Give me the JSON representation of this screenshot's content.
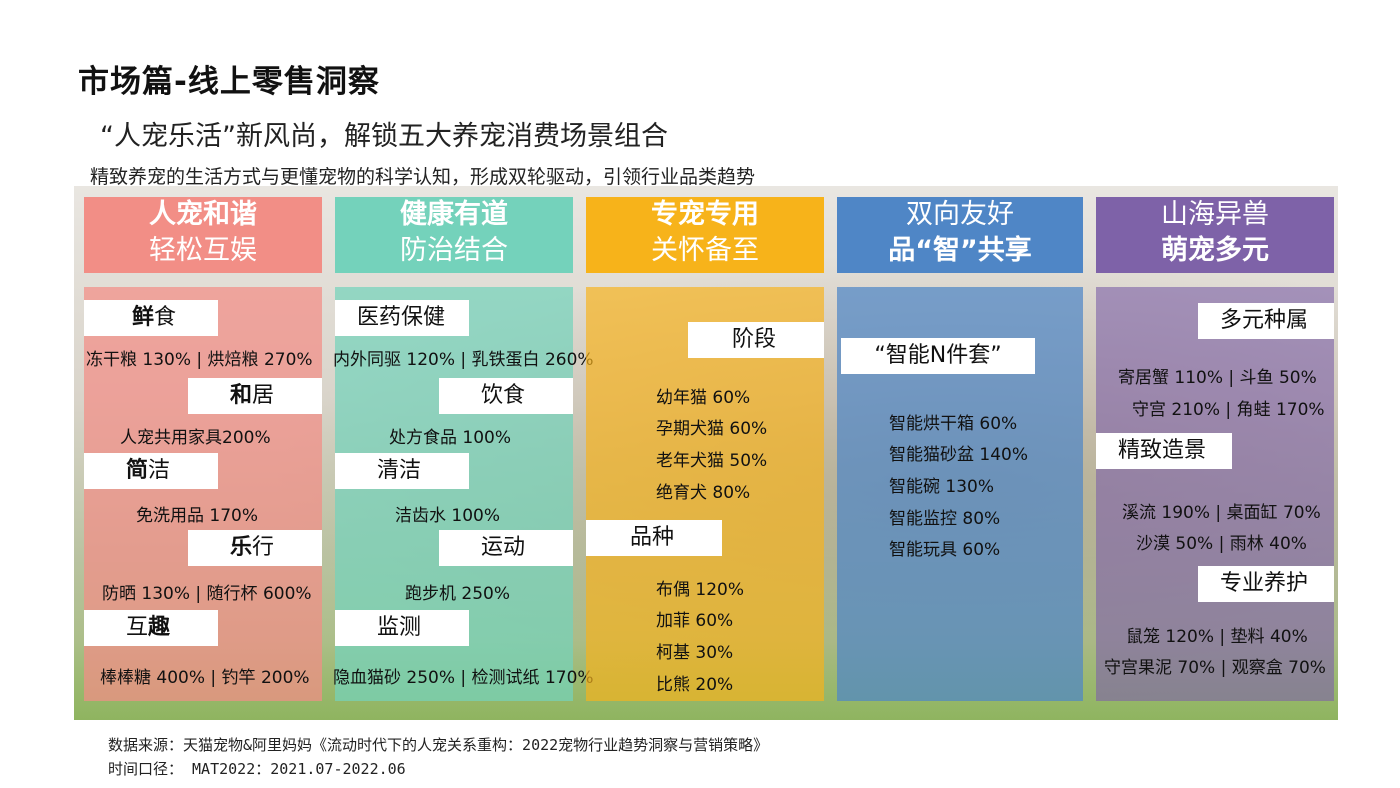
{
  "title": "市场篇-线上零售洞察",
  "subtitle": "“人宠乐活”新风尚，解锁五大养宠消费场景组合",
  "description": "精致养宠的生活方式与更懂宠物的科学认知，形成双轮驱动，引领行业品类趋势",
  "colors": {
    "c1": "#f28e86",
    "c2": "#74d2bb",
    "c3": "#f7b31a",
    "c4": "#4f86c6",
    "c5": "#7e62a8"
  },
  "columns": [
    {
      "header": [
        "人宠和谐",
        "轻松互娱"
      ],
      "items": [
        {
          "label_bold": "鲜",
          "label_rest": "食",
          "values": "冻干粮 130%  |  烘焙粮 270%"
        },
        {
          "label_bold": "和",
          "label_rest": "居",
          "values": "人宠共用家具200%"
        },
        {
          "label_bold": "简",
          "label_rest": "洁",
          "values": "免洗用品 170%"
        },
        {
          "label_bold": "乐",
          "label_rest": "行",
          "values": "防晒 130% | 随行杯 600%"
        },
        {
          "label_bold": "互",
          "label_mid": "趣",
          "label_rest": "",
          "values": "棒棒糖 400% | 钓竿 200%"
        }
      ]
    },
    {
      "header": [
        "健康有道",
        "防治结合"
      ],
      "items": [
        {
          "label": "医药保健",
          "values": "内外同驱 120% | 乳铁蛋白 260%"
        },
        {
          "label": "饮食",
          "values": "处方食品 100%"
        },
        {
          "label": "清洁",
          "values": "洁齿水 100%"
        },
        {
          "label": "运动",
          "values": "跑步机 250%"
        },
        {
          "label": "监测",
          "values": "隐血猫砂 250% | 检测试纸 170%"
        }
      ]
    },
    {
      "header": [
        "专宠专用",
        "关怀备至"
      ],
      "groups": [
        {
          "label": "阶段",
          "values": [
            "幼年猫 60%",
            "孕期犬猫 60%",
            "老年犬猫 50%",
            "绝育犬 80%"
          ]
        },
        {
          "label": "品种",
          "values": [
            "布偶 120%",
            "加菲 60%",
            "柯基 30%",
            "比熊 20%"
          ]
        }
      ]
    },
    {
      "header": [
        "双向友好",
        "品“智”共享"
      ],
      "groups": [
        {
          "label": "“智能N件套”",
          "values": [
            "智能烘干箱 60%",
            "智能猫砂盆 140%",
            "智能碗 130%",
            "智能监控 80%",
            "智能玩具 60%"
          ]
        }
      ]
    },
    {
      "header": [
        "山海异兽",
        "萌宠多元"
      ],
      "groups": [
        {
          "label": "多元种属",
          "values": [
            "寄居蟹 110% | 斗鱼 50%",
            "守宫 210% | 角蛙 170%"
          ]
        },
        {
          "label": "精致造景",
          "values": [
            "溪流 190% | 桌面缸 70%",
            "沙漠 50% | 雨林 40%"
          ]
        },
        {
          "label": "专业养护",
          "values": [
            "鼠笼 120% | 垫料 40%",
            "守宫果泥 70% | 观察盒 70%"
          ]
        }
      ]
    }
  ],
  "footer": {
    "source": "数据来源：天猫宠物&阿里妈妈《流动时代下的人宠关系重构：2022宠物行业趋势洞察与营销策略》",
    "period": "时间口径： MAT2022：2021.07-2022.06"
  }
}
